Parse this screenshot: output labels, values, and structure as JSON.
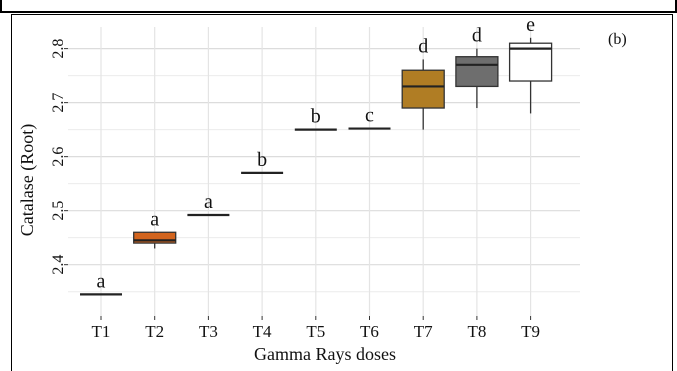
{
  "chart_data": {
    "type": "box",
    "panel_label": "(b)",
    "xlabel": "Gamma Rays doses",
    "ylabel": "Catalase (Root)",
    "ylim": [
      2.305,
      2.84
    ],
    "y_ticks": [
      "2.4",
      "2.5",
      "2.6",
      "2.7",
      "2.8"
    ],
    "categories": [
      "T1",
      "T2",
      "T3",
      "T4",
      "T5",
      "T6",
      "T7",
      "T8",
      "T9"
    ],
    "groups": [
      "a",
      "a",
      "a",
      "b",
      "b",
      "c",
      "d",
      "d",
      "e"
    ],
    "boxes": [
      {
        "min": 2.345,
        "q1": 2.345,
        "median": 2.345,
        "q3": 2.345,
        "max": 2.345
      },
      {
        "min": 2.43,
        "q1": 2.44,
        "median": 2.445,
        "q3": 2.46,
        "max": 2.46
      },
      {
        "min": 2.492,
        "q1": 2.492,
        "median": 2.492,
        "q3": 2.492,
        "max": 2.492
      },
      {
        "min": 2.57,
        "q1": 2.57,
        "median": 2.57,
        "q3": 2.57,
        "max": 2.57
      },
      {
        "min": 2.65,
        "q1": 2.65,
        "median": 2.65,
        "q3": 2.65,
        "max": 2.65
      },
      {
        "min": 2.652,
        "q1": 2.652,
        "median": 2.652,
        "q3": 2.652,
        "max": 2.652
      },
      {
        "min": 2.65,
        "q1": 2.69,
        "median": 2.73,
        "q3": 2.76,
        "max": 2.78
      },
      {
        "min": 2.69,
        "q1": 2.73,
        "median": 2.77,
        "q3": 2.785,
        "max": 2.8
      },
      {
        "min": 2.68,
        "q1": 2.74,
        "median": 2.8,
        "q3": 2.81,
        "max": 2.82
      }
    ],
    "colors": [
      "#ffffff",
      "#d2641e",
      "#ffffff",
      "#ffffff",
      "#ffffff",
      "#ffffff",
      "#b07d24",
      "#6e6e6e",
      "#ffffff"
    ],
    "grid": true,
    "legend": "none"
  }
}
